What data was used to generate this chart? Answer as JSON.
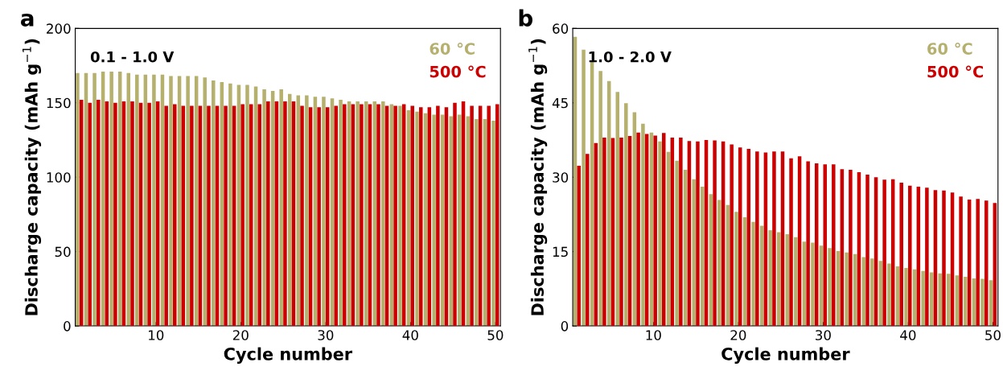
{
  "chart_data": [
    {
      "type": "bar",
      "title": "a",
      "annotations": [
        "0.1 - 1.0 V"
      ],
      "xlabel": "Cycle number",
      "ylabel": "Discharge capacity (mAh g$^{−1}$)",
      "x": [
        1,
        2,
        3,
        4,
        5,
        6,
        7,
        8,
        9,
        10,
        11,
        12,
        13,
        14,
        15,
        16,
        17,
        18,
        19,
        20,
        21,
        22,
        23,
        24,
        25,
        26,
        27,
        28,
        29,
        30,
        31,
        32,
        33,
        34,
        35,
        36,
        37,
        38,
        39,
        40,
        41,
        42,
        43,
        44,
        45,
        46,
        47,
        48,
        49,
        50
      ],
      "series": [
        {
          "name": "60 °C",
          "color": "#b5b06e",
          "values": [
            170,
            170,
            170,
            171,
            171,
            171,
            170,
            169,
            169,
            169,
            169,
            168,
            168,
            168,
            168,
            167,
            165,
            164,
            163,
            162,
            162,
            161,
            159,
            158,
            159,
            156,
            155,
            155,
            154,
            154,
            153,
            152,
            151,
            151,
            151,
            151,
            151,
            149,
            148,
            145,
            144,
            143,
            142,
            142,
            141,
            142,
            141,
            139,
            139,
            138
          ]
        },
        {
          "name": "500 °C",
          "color": "#cc0000",
          "values": [
            152,
            150,
            152,
            151,
            150,
            151,
            151,
            150,
            150,
            151,
            148,
            149,
            148,
            148,
            148,
            148,
            148,
            148,
            148,
            149,
            149,
            149,
            151,
            151,
            151,
            151,
            148,
            147,
            147,
            147,
            148,
            149,
            149,
            149,
            149,
            149,
            148,
            148,
            149,
            148,
            147,
            147,
            148,
            147,
            150,
            151,
            148,
            148,
            148,
            149
          ]
        }
      ],
      "xlim": [
        0.5,
        50.6
      ],
      "xticks": [
        10,
        20,
        30,
        40,
        50
      ],
      "ylim": [
        0,
        200
      ],
      "yticks": [
        0,
        50,
        100,
        150,
        200
      ],
      "legend": "top right",
      "grid": false
    },
    {
      "type": "bar",
      "title": "b",
      "annotations": [
        "1.0 - 2.0 V"
      ],
      "xlabel": "Cycle number",
      "ylabel": "Discharge capacity (mAh g$^{−1}$)",
      "x": [
        1,
        2,
        3,
        4,
        5,
        6,
        7,
        8,
        9,
        10,
        11,
        12,
        13,
        14,
        15,
        16,
        17,
        18,
        19,
        20,
        21,
        22,
        23,
        24,
        25,
        26,
        27,
        28,
        29,
        30,
        31,
        32,
        33,
        34,
        35,
        36,
        37,
        38,
        39,
        40,
        41,
        42,
        43,
        44,
        45,
        46,
        47,
        48,
        49,
        50
      ],
      "series": [
        {
          "name": "60 °C",
          "color": "#b5b06e",
          "values": [
            58.3,
            55.7,
            53.5,
            51.4,
            49.4,
            47.2,
            44.9,
            43.1,
            40.8,
            39.0,
            37.2,
            35.1,
            33.3,
            31.5,
            29.6,
            28.1,
            26.6,
            25.4,
            24.4,
            23.0,
            21.9,
            21.0,
            20.2,
            19.3,
            18.9,
            18.5,
            17.9,
            17.0,
            16.8,
            16.2,
            15.7,
            15.1,
            14.8,
            14.5,
            13.9,
            13.6,
            13.1,
            12.6,
            12.0,
            11.7,
            11.4,
            11.1,
            10.8,
            10.6,
            10.5,
            10.2,
            9.9,
            9.6,
            9.5,
            9.2
          ]
        },
        {
          "name": "500 °C",
          "color": "#cc0000",
          "values": [
            32.3,
            34.7,
            36.9,
            38.0,
            37.9,
            38.0,
            38.3,
            39.0,
            38.7,
            38.4,
            38.9,
            38.0,
            38.0,
            37.3,
            37.2,
            37.5,
            37.4,
            37.2,
            36.6,
            36.0,
            35.7,
            35.2,
            35.0,
            35.2,
            35.2,
            33.8,
            34.2,
            33.2,
            32.8,
            32.6,
            32.6,
            31.6,
            31.5,
            31.0,
            30.5,
            30.0,
            29.5,
            29.6,
            28.9,
            28.3,
            28.1,
            27.9,
            27.4,
            27.3,
            26.9,
            26.1,
            25.5,
            25.6,
            25.3,
            24.8
          ]
        }
      ],
      "xlim": [
        0.5,
        50.6
      ],
      "xticks": [
        10,
        20,
        30,
        40,
        50
      ],
      "ylim": [
        0,
        60
      ],
      "yticks": [
        0,
        15,
        30,
        45,
        60
      ],
      "legend": "top right",
      "grid": false
    }
  ]
}
